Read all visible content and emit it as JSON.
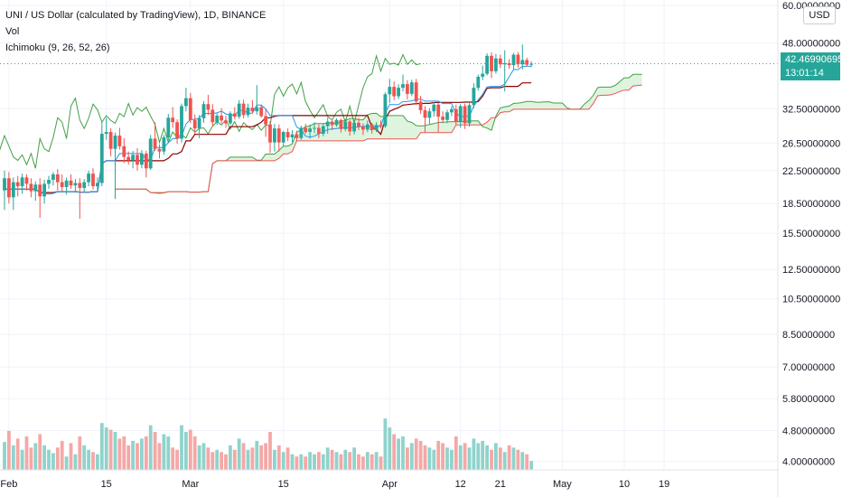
{
  "header": {
    "title": "UNI / US Dollar (calculated by TradingView), 1D, BINANCE",
    "vol_label": "Vol",
    "ichimoku_label": "Ichimoku (9, 26, 52, 26)"
  },
  "axis_controls": {
    "currency_label": "USD"
  },
  "price_tag": {
    "price": "42.46990695",
    "countdown": "13:01:14"
  },
  "colors": {
    "background": "#ffffff",
    "grid": "#f0f3fa",
    "up": "#26a69a",
    "down": "#ef5350",
    "conversion_line": "#2196f3",
    "base_line": "#8b0000",
    "lagging_span": "#43a047",
    "leading_span_a": "#43a047",
    "leading_span_b": "#ef5350",
    "cloud": "#d9f2d9",
    "volume_up": "#8fd3cc",
    "volume_down": "#f4a8a6",
    "axis_text": "#131722"
  },
  "chart_data": {
    "type": "candlestick",
    "symbol": "UNI / US Dollar",
    "interval": "1D",
    "exchange": "BINANCE",
    "y_scale": "log",
    "ylim": [
      3.8,
      62
    ],
    "y_ticks": [
      "60.00000000",
      "48.00000000",
      "32.50000000",
      "26.50000000",
      "22.50000000",
      "18.50000000",
      "15.50000000",
      "12.50000000",
      "10.50000000",
      "8.50000000",
      "7.00000000",
      "5.80000000",
      "4.80000000",
      "4.00000000"
    ],
    "x_ticks": [
      "Feb",
      "15",
      "Mar",
      "15",
      "Apr",
      "12",
      "21",
      "May",
      "10",
      "19"
    ],
    "last_price": 42.46990695,
    "candles": [
      {
        "open": 20.0,
        "high": 22.5,
        "low": 17.8,
        "close": 21.5
      },
      {
        "open": 21.5,
        "high": 22.3,
        "low": 18.5,
        "close": 19.2
      },
      {
        "open": 19.2,
        "high": 21.6,
        "low": 17.8,
        "close": 21.0
      },
      {
        "open": 21.0,
        "high": 21.8,
        "low": 19.3,
        "close": 20.5
      },
      {
        "open": 20.5,
        "high": 22.1,
        "low": 19.6,
        "close": 21.6
      },
      {
        "open": 21.6,
        "high": 22.0,
        "low": 20.0,
        "close": 20.8
      },
      {
        "open": 20.8,
        "high": 21.5,
        "low": 19.2,
        "close": 19.9
      },
      {
        "open": 19.9,
        "high": 21.1,
        "low": 18.8,
        "close": 20.7
      },
      {
        "open": 20.7,
        "high": 21.5,
        "low": 17.0,
        "close": 19.3
      },
      {
        "open": 19.3,
        "high": 21.3,
        "low": 18.5,
        "close": 20.8
      },
      {
        "open": 20.8,
        "high": 21.8,
        "low": 20.2,
        "close": 21.3
      },
      {
        "open": 21.3,
        "high": 22.3,
        "low": 20.6,
        "close": 22.0
      },
      {
        "open": 22.0,
        "high": 22.7,
        "low": 20.0,
        "close": 21.0
      },
      {
        "open": 21.0,
        "high": 22.0,
        "low": 19.8,
        "close": 20.4
      },
      {
        "open": 20.4,
        "high": 21.6,
        "low": 19.5,
        "close": 21.2
      },
      {
        "open": 21.2,
        "high": 22.0,
        "low": 20.2,
        "close": 20.6
      },
      {
        "open": 20.6,
        "high": 21.4,
        "low": 19.9,
        "close": 20.9
      },
      {
        "open": 20.9,
        "high": 21.5,
        "low": 16.9,
        "close": 20.3
      },
      {
        "open": 20.3,
        "high": 21.4,
        "low": 19.8,
        "close": 21.0
      },
      {
        "open": 21.0,
        "high": 22.5,
        "low": 20.5,
        "close": 22.1
      },
      {
        "open": 22.1,
        "high": 22.8,
        "low": 20.1,
        "close": 20.5
      },
      {
        "open": 20.5,
        "high": 21.6,
        "low": 19.8,
        "close": 20.9
      },
      {
        "open": 20.9,
        "high": 30.0,
        "low": 20.5,
        "close": 28.0
      },
      {
        "open": 28.0,
        "high": 30.8,
        "low": 27.0,
        "close": 28.3
      },
      {
        "open": 28.3,
        "high": 28.9,
        "low": 24.5,
        "close": 25.6
      },
      {
        "open": 25.6,
        "high": 28.2,
        "low": 19.0,
        "close": 27.7
      },
      {
        "open": 27.7,
        "high": 29.0,
        "low": 25.5,
        "close": 26.0
      },
      {
        "open": 26.0,
        "high": 27.3,
        "low": 23.5,
        "close": 24.4
      },
      {
        "open": 24.4,
        "high": 25.2,
        "low": 23.3,
        "close": 23.9
      },
      {
        "open": 23.9,
        "high": 25.3,
        "low": 22.8,
        "close": 24.7
      },
      {
        "open": 24.7,
        "high": 25.7,
        "low": 22.5,
        "close": 23.3
      },
      {
        "open": 23.3,
        "high": 25.4,
        "low": 22.8,
        "close": 24.9
      },
      {
        "open": 24.9,
        "high": 25.3,
        "low": 21.6,
        "close": 22.8
      },
      {
        "open": 22.8,
        "high": 27.8,
        "low": 22.6,
        "close": 27.2
      },
      {
        "open": 27.2,
        "high": 30.0,
        "low": 25.3,
        "close": 25.6
      },
      {
        "open": 25.6,
        "high": 26.3,
        "low": 24.2,
        "close": 25.2
      },
      {
        "open": 25.2,
        "high": 27.8,
        "low": 24.7,
        "close": 27.4
      },
      {
        "open": 27.4,
        "high": 31.5,
        "low": 26.9,
        "close": 30.8
      },
      {
        "open": 30.8,
        "high": 32.8,
        "low": 29.0,
        "close": 30.0
      },
      {
        "open": 30.0,
        "high": 30.5,
        "low": 26.4,
        "close": 27.2
      },
      {
        "open": 27.2,
        "high": 33.5,
        "low": 26.6,
        "close": 33.0
      },
      {
        "open": 33.0,
        "high": 36.8,
        "low": 32.0,
        "close": 34.6
      },
      {
        "open": 34.6,
        "high": 35.7,
        "low": 29.8,
        "close": 30.4
      },
      {
        "open": 30.4,
        "high": 31.4,
        "low": 28.0,
        "close": 28.9
      },
      {
        "open": 28.9,
        "high": 31.3,
        "low": 27.3,
        "close": 30.7
      },
      {
        "open": 30.7,
        "high": 34.0,
        "low": 29.9,
        "close": 33.4
      },
      {
        "open": 33.4,
        "high": 35.3,
        "low": 31.3,
        "close": 32.3
      },
      {
        "open": 32.3,
        "high": 33.4,
        "low": 29.2,
        "close": 30.0
      },
      {
        "open": 30.0,
        "high": 31.6,
        "low": 29.5,
        "close": 31.2
      },
      {
        "open": 31.2,
        "high": 32.6,
        "low": 29.8,
        "close": 30.3
      },
      {
        "open": 30.3,
        "high": 31.2,
        "low": 29.0,
        "close": 29.8
      },
      {
        "open": 29.8,
        "high": 32.0,
        "low": 29.5,
        "close": 31.6
      },
      {
        "open": 31.6,
        "high": 32.8,
        "low": 30.5,
        "close": 31.0
      },
      {
        "open": 31.0,
        "high": 34.2,
        "low": 30.6,
        "close": 33.5
      },
      {
        "open": 33.5,
        "high": 34.3,
        "low": 30.7,
        "close": 31.3
      },
      {
        "open": 31.3,
        "high": 33.5,
        "low": 30.9,
        "close": 32.7
      },
      {
        "open": 32.7,
        "high": 34.2,
        "low": 31.6,
        "close": 32.0
      },
      {
        "open": 32.0,
        "high": 37.4,
        "low": 31.4,
        "close": 32.8
      },
      {
        "open": 32.8,
        "high": 33.3,
        "low": 30.8,
        "close": 31.1
      },
      {
        "open": 31.1,
        "high": 32.4,
        "low": 27.5,
        "close": 29.6
      },
      {
        "open": 29.6,
        "high": 30.2,
        "low": 25.0,
        "close": 26.6
      },
      {
        "open": 26.6,
        "high": 29.7,
        "low": 25.2,
        "close": 28.9
      },
      {
        "open": 28.9,
        "high": 29.6,
        "low": 25.2,
        "close": 26.6
      },
      {
        "open": 26.6,
        "high": 28.5,
        "low": 26.0,
        "close": 28.3
      },
      {
        "open": 28.3,
        "high": 28.9,
        "low": 26.8,
        "close": 27.4
      },
      {
        "open": 27.4,
        "high": 28.6,
        "low": 26.6,
        "close": 27.9
      },
      {
        "open": 27.9,
        "high": 28.5,
        "low": 26.8,
        "close": 27.3
      },
      {
        "open": 27.3,
        "high": 29.4,
        "low": 27.0,
        "close": 29.0
      },
      {
        "open": 29.0,
        "high": 29.7,
        "low": 28.0,
        "close": 28.3
      },
      {
        "open": 28.3,
        "high": 29.6,
        "low": 27.2,
        "close": 28.9
      },
      {
        "open": 28.9,
        "high": 30.0,
        "low": 28.1,
        "close": 29.0
      },
      {
        "open": 29.0,
        "high": 29.6,
        "low": 27.3,
        "close": 28.0
      },
      {
        "open": 28.0,
        "high": 29.7,
        "low": 27.6,
        "close": 29.3
      },
      {
        "open": 29.3,
        "high": 30.8,
        "low": 28.0,
        "close": 30.1
      },
      {
        "open": 30.1,
        "high": 30.5,
        "low": 28.6,
        "close": 29.5
      },
      {
        "open": 29.5,
        "high": 30.7,
        "low": 29.2,
        "close": 30.4
      },
      {
        "open": 30.4,
        "high": 30.6,
        "low": 28.2,
        "close": 28.8
      },
      {
        "open": 28.8,
        "high": 30.6,
        "low": 28.4,
        "close": 30.1
      },
      {
        "open": 30.1,
        "high": 30.4,
        "low": 27.7,
        "close": 28.4
      },
      {
        "open": 28.4,
        "high": 30.4,
        "low": 27.9,
        "close": 29.9
      },
      {
        "open": 29.9,
        "high": 30.8,
        "low": 28.6,
        "close": 29.2
      },
      {
        "open": 29.2,
        "high": 29.8,
        "low": 27.8,
        "close": 28.7
      },
      {
        "open": 28.7,
        "high": 30.3,
        "low": 28.3,
        "close": 29.6
      },
      {
        "open": 29.6,
        "high": 29.9,
        "low": 28.0,
        "close": 28.6
      },
      {
        "open": 28.6,
        "high": 30.0,
        "low": 28.3,
        "close": 29.5
      },
      {
        "open": 29.5,
        "high": 30.3,
        "low": 28.9,
        "close": 29.3
      },
      {
        "open": 29.3,
        "high": 35.8,
        "low": 29.0,
        "close": 35.4
      },
      {
        "open": 35.4,
        "high": 38.8,
        "low": 33.6,
        "close": 37.0
      },
      {
        "open": 37.0,
        "high": 38.2,
        "low": 34.2,
        "close": 35.0
      },
      {
        "open": 35.0,
        "high": 37.6,
        "low": 34.4,
        "close": 36.8
      },
      {
        "open": 36.8,
        "high": 39.8,
        "low": 36.0,
        "close": 37.6
      },
      {
        "open": 37.6,
        "high": 38.5,
        "low": 34.3,
        "close": 35.5
      },
      {
        "open": 35.5,
        "high": 38.6,
        "low": 35.0,
        "close": 38.0
      },
      {
        "open": 38.0,
        "high": 38.8,
        "low": 33.2,
        "close": 33.9
      },
      {
        "open": 33.9,
        "high": 35.1,
        "low": 31.5,
        "close": 32.2
      },
      {
        "open": 32.2,
        "high": 33.0,
        "low": 28.2,
        "close": 30.8
      },
      {
        "open": 30.8,
        "high": 32.6,
        "low": 29.6,
        "close": 32.0
      },
      {
        "open": 32.0,
        "high": 33.8,
        "low": 31.0,
        "close": 33.3
      },
      {
        "open": 33.3,
        "high": 33.6,
        "low": 28.3,
        "close": 31.0
      },
      {
        "open": 31.0,
        "high": 32.0,
        "low": 29.8,
        "close": 30.4
      },
      {
        "open": 30.4,
        "high": 32.3,
        "low": 29.8,
        "close": 31.8
      },
      {
        "open": 31.8,
        "high": 33.0,
        "low": 31.1,
        "close": 32.4
      },
      {
        "open": 32.4,
        "high": 33.3,
        "low": 29.4,
        "close": 30.0
      },
      {
        "open": 30.0,
        "high": 33.4,
        "low": 29.0,
        "close": 33.0
      },
      {
        "open": 33.0,
        "high": 33.5,
        "low": 28.8,
        "close": 29.8
      },
      {
        "open": 29.8,
        "high": 33.6,
        "low": 29.2,
        "close": 33.2
      },
      {
        "open": 33.2,
        "high": 37.8,
        "low": 32.6,
        "close": 36.8
      },
      {
        "open": 36.8,
        "high": 39.8,
        "low": 36.2,
        "close": 39.3
      },
      {
        "open": 39.3,
        "high": 42.0,
        "low": 38.5,
        "close": 40.0
      },
      {
        "open": 40.0,
        "high": 45.2,
        "low": 39.6,
        "close": 44.5
      },
      {
        "open": 44.5,
        "high": 45.4,
        "low": 39.0,
        "close": 40.6
      },
      {
        "open": 40.6,
        "high": 45.0,
        "low": 40.0,
        "close": 43.8
      },
      {
        "open": 43.8,
        "high": 44.8,
        "low": 41.4,
        "close": 42.3
      },
      {
        "open": 42.3,
        "high": 46.0,
        "low": 36.0,
        "close": 42.6
      },
      {
        "open": 42.6,
        "high": 43.6,
        "low": 41.2,
        "close": 42.1
      },
      {
        "open": 42.1,
        "high": 45.3,
        "low": 41.0,
        "close": 44.8
      },
      {
        "open": 44.8,
        "high": 45.5,
        "low": 41.5,
        "close": 42.3
      },
      {
        "open": 42.3,
        "high": 47.6,
        "low": 41.0,
        "close": 43.4
      },
      {
        "open": 43.4,
        "high": 44.0,
        "low": 41.8,
        "close": 42.2
      },
      {
        "open": 42.2,
        "high": 43.1,
        "low": 41.6,
        "close": 42.47
      }
    ],
    "volume_relative": [
      0.25,
      0.35,
      0.22,
      0.28,
      0.18,
      0.3,
      0.2,
      0.24,
      0.32,
      0.22,
      0.18,
      0.15,
      0.2,
      0.26,
      0.12,
      0.24,
      0.14,
      0.3,
      0.22,
      0.18,
      0.16,
      0.14,
      0.42,
      0.38,
      0.36,
      0.34,
      0.28,
      0.3,
      0.22,
      0.26,
      0.24,
      0.28,
      0.3,
      0.4,
      0.34,
      0.24,
      0.32,
      0.3,
      0.2,
      0.18,
      0.4,
      0.34,
      0.36,
      0.3,
      0.22,
      0.24,
      0.2,
      0.16,
      0.18,
      0.16,
      0.14,
      0.22,
      0.18,
      0.28,
      0.24,
      0.18,
      0.2,
      0.26,
      0.22,
      0.24,
      0.34,
      0.18,
      0.22,
      0.16,
      0.2,
      0.14,
      0.12,
      0.14,
      0.12,
      0.16,
      0.14,
      0.16,
      0.14,
      0.2,
      0.18,
      0.16,
      0.14,
      0.18,
      0.16,
      0.2,
      0.14,
      0.12,
      0.16,
      0.14,
      0.16,
      0.12,
      0.46,
      0.38,
      0.32,
      0.28,
      0.3,
      0.2,
      0.24,
      0.28,
      0.26,
      0.22,
      0.2,
      0.18,
      0.26,
      0.24,
      0.2,
      0.18,
      0.3,
      0.22,
      0.24,
      0.2,
      0.28,
      0.24,
      0.26,
      0.22,
      0.18,
      0.24,
      0.2,
      0.16,
      0.22,
      0.2,
      0.18,
      0.16,
      0.14,
      0.08
    ]
  }
}
